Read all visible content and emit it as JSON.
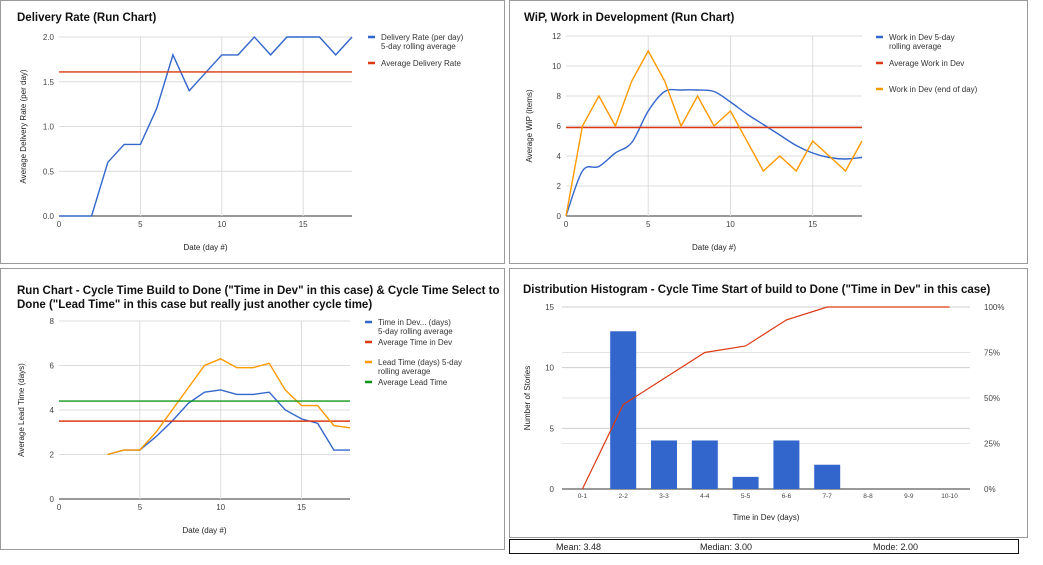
{
  "chart_data": [
    {
      "type": "line",
      "title": "Delivery Rate (Run Chart)",
      "xlabel": "Date (day #)",
      "ylabel": "Average Delivery Rate (per day)",
      "xlim": [
        0,
        18
      ],
      "ylim": [
        0,
        2.0
      ],
      "xticks": [
        0,
        5,
        10,
        15
      ],
      "yticks": [
        0.0,
        0.5,
        1.0,
        1.5,
        2.0
      ],
      "ytick_labels": [
        "0.0",
        "0.5",
        "1.0",
        "1.5",
        "2.0"
      ],
      "grid": true,
      "legend": "right",
      "series": [
        {
          "name": "Delivery Rate (per day) 5-day rolling average",
          "color": "#3366cc",
          "x": [
            0,
            1,
            2,
            3,
            4,
            5,
            6,
            7,
            8,
            9,
            10,
            11,
            12,
            13,
            14,
            15,
            16,
            17,
            18
          ],
          "y": [
            0,
            0,
            0,
            0.6,
            0.8,
            0.8,
            1.2,
            1.8,
            1.4,
            1.6,
            1.8,
            1.8,
            2.0,
            1.8,
            2.0,
            2.0,
            2.0,
            1.8,
            2.0
          ]
        },
        {
          "name": "Average Delivery Rate",
          "color": "#dc3912",
          "x": [
            0,
            18
          ],
          "y": [
            1.61,
            1.61
          ]
        }
      ]
    },
    {
      "type": "line",
      "title": "WiP, Work in Development (Run Chart)",
      "xlabel": "Date (day #)",
      "ylabel": "Average WiP (items)",
      "xlim": [
        0,
        18
      ],
      "ylim": [
        0,
        12
      ],
      "xticks": [
        0,
        5,
        10,
        15
      ],
      "yticks": [
        0,
        2,
        4,
        6,
        8,
        10,
        12
      ],
      "ytick_labels": [
        "0",
        "2",
        "4",
        "6",
        "8",
        "10",
        "12"
      ],
      "grid": true,
      "legend": "right",
      "series": [
        {
          "name": "Work in Dev 5-day rolling average",
          "color": "#3366cc",
          "smooth": true,
          "x": [
            0,
            1,
            2,
            3,
            4,
            5,
            6,
            7,
            8,
            9,
            10,
            11,
            12,
            13,
            14,
            15,
            16,
            17,
            18
          ],
          "y": [
            0,
            3.0,
            3.3,
            4.2,
            4.9,
            7.0,
            8.3,
            8.4,
            8.4,
            8.3,
            7.6,
            6.8,
            6.1,
            5.4,
            4.7,
            4.2,
            3.9,
            3.8,
            3.9
          ]
        },
        {
          "name": "Average Work in Dev",
          "color": "#dc3912",
          "x": [
            0,
            18
          ],
          "y": [
            5.9,
            5.9
          ]
        },
        {
          "name": "Work in Dev (end of day)",
          "color": "#ff9900",
          "x": [
            0,
            1,
            2,
            3,
            4,
            5,
            6,
            7,
            8,
            9,
            10,
            11,
            12,
            13,
            14,
            15,
            16,
            17,
            18
          ],
          "y": [
            0,
            6,
            8,
            6,
            9,
            11,
            9,
            6,
            8,
            6,
            7,
            5,
            3,
            4,
            3,
            5,
            4,
            3,
            5
          ]
        }
      ]
    },
    {
      "type": "line",
      "title": "Run Chart - Cycle Time Build to Done (\"Time in Dev\" in this case) & Cycle Time Select to Done (\"Lead Time\" in this case but really just another cycle time)",
      "title_lines": [
        "Run Chart - Cycle Time Build to Done (\"Time in Dev\" in this case) & Cycle Time Select to",
        "Done (\"Lead Time\" in this case but really just another cycle time)"
      ],
      "xlabel": "Date (day #)",
      "ylabel": "Average Lead Time (days)",
      "xlim": [
        0,
        18
      ],
      "ylim": [
        0,
        8
      ],
      "xticks": [
        0,
        5,
        10,
        15
      ],
      "yticks": [
        0,
        2,
        4,
        6,
        8
      ],
      "ytick_labels": [
        "0",
        "2",
        "4",
        "6",
        "8"
      ],
      "grid": true,
      "legend": "right",
      "series": [
        {
          "name": "Time in Dev... (days) 5-day rolling average",
          "color": "#3366cc",
          "x": [
            3,
            4,
            5,
            6,
            7,
            8,
            9,
            10,
            11,
            12,
            13,
            14,
            15,
            16,
            17,
            18
          ],
          "y": [
            2.0,
            2.2,
            2.2,
            2.8,
            3.5,
            4.3,
            4.8,
            4.9,
            4.7,
            4.7,
            4.8,
            4.0,
            3.6,
            3.4,
            2.2,
            2.2
          ]
        },
        {
          "name": "Average Time in Dev",
          "color": "#dc3912",
          "x": [
            0,
            18
          ],
          "y": [
            3.5,
            3.5
          ]
        },
        {
          "name": "Lead Time (days) 5-day rolling average",
          "color": "#ff9900",
          "x": [
            3,
            4,
            5,
            6,
            7,
            8,
            9,
            10,
            11,
            12,
            13,
            14,
            15,
            16,
            17,
            18
          ],
          "y": [
            2.0,
            2.2,
            2.2,
            3.0,
            4.0,
            5.0,
            6.0,
            6.3,
            5.9,
            5.9,
            6.1,
            4.9,
            4.2,
            4.2,
            3.3,
            3.2
          ]
        },
        {
          "name": "Average Lead Time",
          "color": "#109618",
          "x": [
            0,
            18
          ],
          "y": [
            4.4,
            4.4
          ]
        }
      ]
    },
    {
      "type": "bar",
      "title": "Distribution Histogram - Cycle Time Start of build to Done (\"Time in Dev\" in this case)",
      "xlabel": "Time in Dev (days)",
      "ylabel": "Number of Stories",
      "categories": [
        "0-1",
        "2-2",
        "3-3",
        "4-4",
        "5-5",
        "6-6",
        "7-7",
        "8-8",
        "9-9",
        "10-10"
      ],
      "ylim": [
        0,
        15
      ],
      "yticks": [
        0,
        5,
        10,
        15
      ],
      "ytick_labels": [
        "0",
        "5",
        "10",
        "15"
      ],
      "y2lim": [
        0,
        100
      ],
      "y2ticks": [
        0,
        25,
        50,
        75,
        100
      ],
      "y2tick_labels": [
        "0%",
        "25%",
        "50%",
        "75%",
        "100%"
      ],
      "grid": true,
      "series": [
        {
          "kind": "bar",
          "color": "#3366cc",
          "values": [
            0,
            13,
            4,
            4,
            1,
            4,
            2,
            0,
            0,
            0
          ]
        },
        {
          "kind": "line",
          "axis": "right",
          "color": "#dc3912",
          "values": [
            0,
            46.4,
            60.7,
            75.0,
            78.6,
            92.9,
            100,
            100,
            100,
            100
          ]
        }
      ],
      "stats": {
        "mean": "Mean: 3.48",
        "median": "Median: 3.00",
        "mode": "Mode: 2.00"
      }
    }
  ]
}
